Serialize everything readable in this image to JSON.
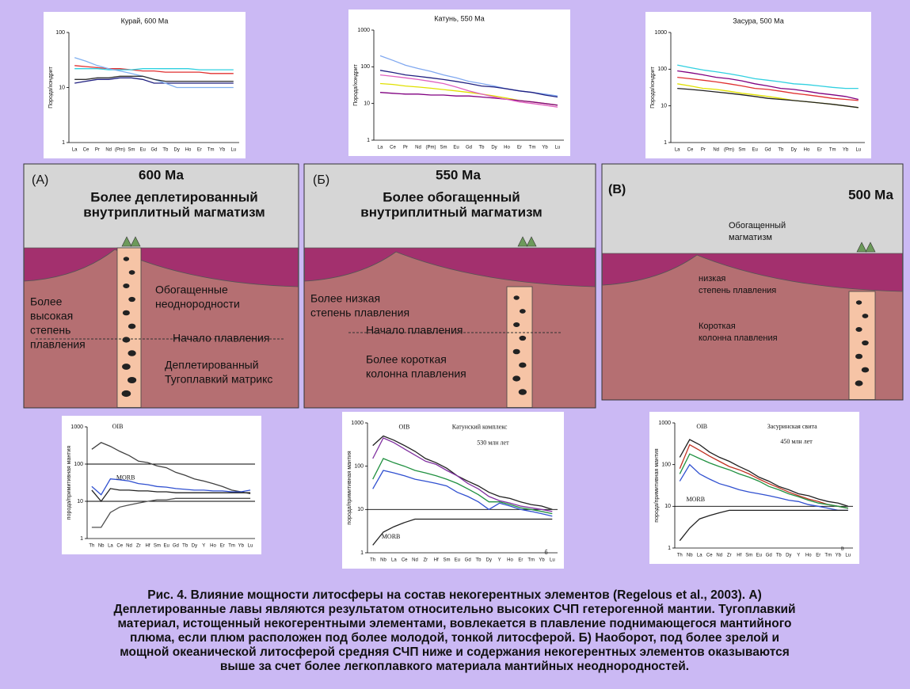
{
  "top_charts": [
    {
      "title": "Курай, 600 Ма",
      "y_label": "Порода/хондрит",
      "log_y": true,
      "ylim": [
        1,
        100
      ],
      "yticks": [
        1,
        10,
        100
      ],
      "categories": [
        "La",
        "Ce",
        "Pr",
        "Nd",
        "(Pm)",
        "Sm",
        "Eu",
        "Gd",
        "Tb",
        "Dy",
        "Ho",
        "Er",
        "Tm",
        "Yb",
        "Lu"
      ],
      "series": [
        {
          "color": "#e03030",
          "values": [
            25,
            24,
            23,
            22,
            22,
            21,
            20,
            20,
            19,
            19,
            19,
            19,
            18,
            18,
            18
          ]
        },
        {
          "color": "#30d0e0",
          "values": [
            22,
            22,
            22,
            21,
            21,
            21,
            22,
            22,
            22,
            22,
            22,
            21,
            21,
            21,
            21
          ]
        },
        {
          "color": "#202080",
          "values": [
            12,
            13,
            14,
            14,
            15,
            15,
            14,
            12,
            12,
            12,
            12,
            12,
            12,
            12,
            12
          ]
        },
        {
          "color": "#80b0f0",
          "values": [
            35,
            30,
            25,
            22,
            20,
            18,
            16,
            14,
            12,
            10,
            10,
            10,
            10,
            10,
            10
          ]
        },
        {
          "color": "#303030",
          "values": [
            14,
            14,
            15,
            15,
            16,
            16,
            16,
            14,
            13,
            13,
            13,
            13,
            13,
            13,
            13
          ]
        }
      ]
    },
    {
      "title": "Катунь, 550 Ма",
      "y_label": "Порода/хондрит",
      "log_y": true,
      "ylim": [
        1,
        1000
      ],
      "yticks": [
        1,
        10,
        100,
        1000
      ],
      "categories": [
        "La",
        "Ce",
        "Pr",
        "Nd",
        "(Pm)",
        "Sm",
        "Eu",
        "Gd",
        "Tb",
        "Dy",
        "Ho",
        "Er",
        "Tm",
        "Yb",
        "Lu"
      ],
      "series": [
        {
          "color": "#80a8f0",
          "values": [
            200,
            150,
            110,
            90,
            75,
            60,
            50,
            40,
            35,
            30,
            25,
            22,
            20,
            18,
            16
          ]
        },
        {
          "color": "#202080",
          "values": [
            80,
            70,
            60,
            55,
            50,
            45,
            40,
            35,
            30,
            28,
            25,
            22,
            20,
            17,
            15
          ]
        },
        {
          "color": "#e0e000",
          "values": [
            35,
            33,
            30,
            28,
            26,
            24,
            22,
            20,
            18,
            16,
            14,
            12,
            11,
            10,
            9
          ]
        },
        {
          "color": "#800080",
          "values": [
            20,
            19,
            18,
            18,
            17,
            17,
            16,
            16,
            15,
            14,
            13,
            12,
            11,
            10,
            9
          ]
        },
        {
          "color": "#e060c0",
          "values": [
            60,
            55,
            50,
            45,
            40,
            35,
            28,
            22,
            18,
            15,
            13,
            11,
            10,
            9,
            8
          ]
        }
      ]
    },
    {
      "title": "Засура, 500 Ма",
      "y_label": "Порода/хондрит",
      "log_y": true,
      "ylim": [
        1,
        1000
      ],
      "yticks": [
        1,
        10,
        100,
        1000
      ],
      "categories": [
        "La",
        "Ce",
        "Pr",
        "Nd",
        "(Pm)",
        "Sm",
        "Eu",
        "Gd",
        "Tb",
        "Dy",
        "Ho",
        "Er",
        "Tm",
        "Yb",
        "Lu"
      ],
      "series": [
        {
          "color": "#30d0e0",
          "values": [
            130,
            110,
            95,
            85,
            75,
            65,
            55,
            50,
            45,
            40,
            38,
            35,
            32,
            30,
            30
          ]
        },
        {
          "color": "#800080",
          "values": [
            90,
            80,
            70,
            60,
            55,
            48,
            40,
            35,
            30,
            28,
            25,
            22,
            20,
            18,
            15
          ]
        },
        {
          "color": "#e0e000",
          "values": [
            40,
            35,
            30,
            28,
            25,
            22,
            20,
            18,
            16,
            14,
            13,
            12,
            11,
            10,
            9
          ]
        },
        {
          "color": "#e03030",
          "values": [
            60,
            55,
            50,
            45,
            40,
            35,
            30,
            28,
            25,
            22,
            20,
            18,
            16,
            15,
            14
          ]
        },
        {
          "color": "#202020",
          "values": [
            30,
            28,
            26,
            24,
            22,
            20,
            18,
            16,
            15,
            14,
            13,
            12,
            11,
            10,
            9
          ]
        }
      ]
    }
  ],
  "panels": [
    {
      "label": "(А)",
      "age": "600 Ма",
      "title": [
        "Более деплетированный",
        "внутриплитный магматизм"
      ],
      "notes": [
        {
          "lines": [
            "Обогащенные",
            "неоднородности"
          ]
        },
        {
          "lines": [
            "Более",
            "высокая",
            "степень",
            "плавления"
          ]
        },
        {
          "lines": [
            "Начало плавления"
          ]
        },
        {
          "lines": [
            "Деплетированный",
            "Тугоплавкий матрикс"
          ]
        }
      ]
    },
    {
      "label": "(Б)",
      "age": "550 Ма",
      "title": [
        "Более обогащенный",
        "внутриплитный магматизм"
      ],
      "notes": [
        {
          "lines": [
            "Более низкая",
            "степень плавления"
          ]
        },
        {
          "lines": [
            "Начало плавления"
          ]
        },
        {
          "lines": [
            "Более короткая",
            "колонна плавления"
          ]
        }
      ]
    },
    {
      "label": "(В)",
      "age": "500 Ма",
      "notes": [
        {
          "lines": [
            "Обогащенный",
            "магматизм"
          ]
        },
        {
          "lines": [
            "низкая",
            "степень плавления"
          ]
        },
        {
          "lines": [
            "Короткая",
            "колонна плавления"
          ]
        }
      ]
    }
  ],
  "bottom_charts": [
    {
      "y_label": "порода/примитивная мантия",
      "log_y": true,
      "ylim": [
        1,
        1000
      ],
      "yticks": [
        1,
        10,
        100,
        1000
      ],
      "hlines": [
        10,
        100
      ],
      "categories": [
        "Th",
        "Nb",
        "La",
        "Ce",
        "Nd",
        "Zr",
        "Hf",
        "Sm",
        "Eu",
        "Gd",
        "Tb",
        "Dy",
        "Y",
        "Ho",
        "Er",
        "Tm",
        "Yb",
        "Lu"
      ],
      "annotations": [
        "OIB",
        "MORB"
      ],
      "series": [
        {
          "color": "#404040",
          "values": [
            250,
            380,
            300,
            220,
            170,
            120,
            110,
            90,
            80,
            60,
            50,
            40,
            35,
            30,
            25,
            20,
            18,
            16
          ]
        },
        {
          "color": "#3050d0",
          "values": [
            25,
            15,
            40,
            38,
            35,
            30,
            28,
            25,
            24,
            22,
            21,
            20,
            20,
            19,
            19,
            18,
            18,
            20
          ]
        },
        {
          "color": "#202020",
          "values": [
            20,
            10,
            22,
            20,
            20,
            19,
            19,
            18,
            18,
            17,
            17,
            17,
            17,
            17,
            17,
            17,
            17,
            17
          ]
        },
        {
          "color": "#505050",
          "values": [
            2,
            2,
            5,
            7,
            8,
            9,
            10,
            11,
            11,
            12,
            12,
            12,
            12,
            12,
            12,
            12,
            12,
            12
          ]
        }
      ]
    },
    {
      "y_label": "порода/примитивная мантия",
      "log_y": true,
      "ylim": [
        1,
        1000
      ],
      "yticks": [
        1,
        10,
        100,
        1000
      ],
      "hlines": [
        10
      ],
      "categories": [
        "Th",
        "Nb",
        "La",
        "Ce",
        "Nd",
        "Zr",
        "Hf",
        "Sm",
        "Eu",
        "Gd",
        "Tb",
        "Dy",
        "Y",
        "Ho",
        "Er",
        "Tm",
        "Yb",
        "Lu"
      ],
      "annotations": [
        "OIB",
        "MORB",
        "Катунский комплекс",
        "530 млн лет",
        "б"
      ],
      "series": [
        {
          "color": "#202020",
          "values": [
            300,
            500,
            400,
            300,
            220,
            150,
            120,
            90,
            60,
            45,
            35,
            25,
            20,
            18,
            15,
            13,
            12,
            10
          ]
        },
        {
          "color": "#8030a0",
          "values": [
            150,
            450,
            350,
            250,
            180,
            130,
            110,
            80,
            60,
            40,
            30,
            20,
            16,
            14,
            12,
            11,
            10,
            9
          ]
        },
        {
          "color": "#3050d0",
          "values": [
            30,
            80,
            70,
            60,
            50,
            45,
            40,
            35,
            25,
            20,
            15,
            10,
            14,
            12,
            10,
            9,
            8,
            7
          ]
        },
        {
          "color": "#209040",
          "values": [
            50,
            150,
            120,
            100,
            80,
            70,
            60,
            50,
            40,
            30,
            22,
            15,
            15,
            13,
            11,
            10,
            9,
            8
          ]
        },
        {
          "color": "#202020",
          "values": [
            1.5,
            3,
            4,
            5,
            6,
            6,
            6,
            6,
            6,
            6,
            6,
            6,
            6,
            6,
            6,
            6,
            6,
            6
          ]
        }
      ]
    },
    {
      "y_label": "порода/примитивная мантия",
      "log_y": true,
      "ylim": [
        1,
        1000
      ],
      "yticks": [
        1,
        10,
        100,
        1000
      ],
      "hlines": [
        10
      ],
      "categories": [
        "Th",
        "Nb",
        "La",
        "Ce",
        "Nd",
        "Zr",
        "Hf",
        "Sm",
        "Eu",
        "Gd",
        "Tb",
        "Dy",
        "Y",
        "Ho",
        "Er",
        "Tm",
        "Yb",
        "Lu"
      ],
      "annotations": [
        "OIB",
        "MORB",
        "Засуринская свита",
        "450 млн лет",
        "в"
      ],
      "series": [
        {
          "color": "#202020",
          "values": [
            150,
            400,
            300,
            200,
            150,
            120,
            90,
            70,
            50,
            40,
            30,
            25,
            20,
            18,
            15,
            13,
            12,
            10
          ]
        },
        {
          "color": "#c03020",
          "values": [
            80,
            300,
            220,
            160,
            120,
            90,
            75,
            60,
            45,
            35,
            28,
            22,
            18,
            15,
            13,
            11,
            10,
            9
          ]
        },
        {
          "color": "#209040",
          "values": [
            60,
            180,
            140,
            110,
            90,
            75,
            60,
            50,
            40,
            30,
            25,
            20,
            17,
            14,
            12,
            11,
            10,
            9
          ]
        },
        {
          "color": "#3050d0",
          "values": [
            40,
            100,
            60,
            45,
            35,
            30,
            25,
            22,
            20,
            18,
            16,
            14,
            13,
            11,
            10,
            9,
            8,
            8
          ]
        },
        {
          "color": "#202020",
          "values": [
            1.5,
            3,
            5,
            6,
            7,
            8,
            8,
            8,
            8,
            8,
            8,
            8,
            8,
            8,
            8,
            8,
            8,
            8
          ]
        }
      ]
    }
  ],
  "caption": [
    "Рис. 4. Влияние мощности литосферы на состав некогерентных элементов (Regelous et al., 2003). А)",
    "Деплетированные лавы являются результатом относительно высоких СЧП гетерогенной мантии. Тугоплавкий",
    "материал, истощенный некогерентными элементами, вовлекается в плавление поднимающегося мантийного",
    "плюма, если плюм расположен под более молодой, тонкой литосферой. Б) Наоборот, под более зрелой и",
    "мощной океанической литосферой средняя СЧП ниже и содержания некогерентных элементов оказываются",
    "выше за счет более легкоплавкого материала мантийных неоднородностей."
  ]
}
